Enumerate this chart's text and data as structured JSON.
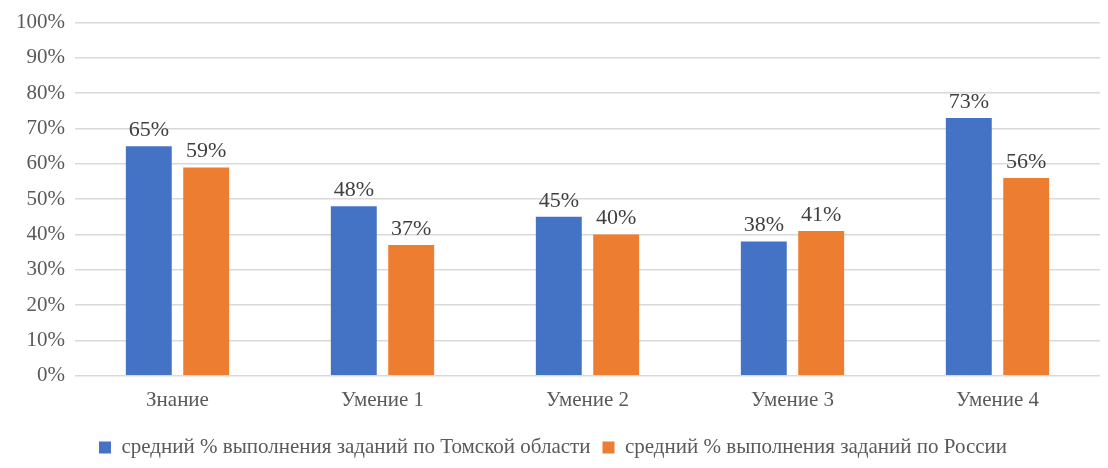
{
  "chart_data": {
    "type": "bar",
    "categories": [
      "Знание",
      "Умение 1",
      "Умение 2",
      "Умение 3",
      "Умение 4"
    ],
    "series": [
      {
        "name": "средний % выполнения заданий по Томской области",
        "color": "#4472c4",
        "values": [
          65,
          48,
          45,
          38,
          73
        ],
        "value_labels": [
          "65%",
          "48%",
          "45%",
          "38%",
          "73%"
        ]
      },
      {
        "name": "средний % выполнения заданий по России",
        "color": "#ed7d31",
        "values": [
          59,
          37,
          40,
          41,
          56
        ],
        "value_labels": [
          "59%",
          "37%",
          "40%",
          "41%",
          "56%"
        ]
      }
    ],
    "ylim": [
      0,
      100
    ],
    "yticks": [
      {
        "value": 0,
        "label": "0%"
      },
      {
        "value": 10,
        "label": "10%"
      },
      {
        "value": 20,
        "label": "20%"
      },
      {
        "value": 30,
        "label": "30%"
      },
      {
        "value": 40,
        "label": "40%"
      },
      {
        "value": 50,
        "label": "50%"
      },
      {
        "value": 60,
        "label": "60%"
      },
      {
        "value": 70,
        "label": "70%"
      },
      {
        "value": 80,
        "label": "80%"
      },
      {
        "value": 90,
        "label": "90%"
      },
      {
        "value": 100,
        "label": "100%"
      }
    ],
    "grid": "y",
    "legend": "bottom"
  }
}
